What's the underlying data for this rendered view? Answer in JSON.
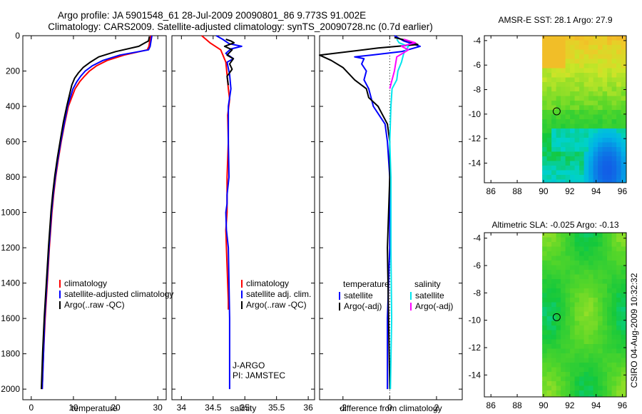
{
  "header": {
    "title_line1": "Argo profile: JA 5901548_61 28-Jul-2009 20090801_86 9.773S 91.002E",
    "title_line2": "Climatology: CARS2009. Satellite-adjusted climatology: synTS_20090728.nc (0.7d earlier)"
  },
  "footer": {
    "side_label": "CSIRO 04-Aug-2009 10:32:32"
  },
  "colors": {
    "red": "#ff0000",
    "blue": "#0000ff",
    "black": "#000000",
    "cyan": "#00e5ee",
    "magenta": "#ff00ff"
  },
  "chart_data": [
    {
      "type": "line",
      "id": "temperature",
      "xlabel": "temperature",
      "xlim": [
        -2,
        32
      ],
      "ylim": [
        0,
        2060
      ],
      "xticks": [
        0,
        10,
        20,
        30
      ],
      "yticks": [
        0,
        200,
        400,
        600,
        800,
        1000,
        1200,
        1400,
        1600,
        1800,
        2000
      ],
      "y_reversed": true,
      "legend": [
        "climatology",
        "satellite-adjusted climatology",
        "Argo(..raw -QC)"
      ],
      "series": [
        {
          "name": "climatology",
          "color": "red",
          "x": [
            28.3,
            28.1,
            27.9,
            27.5,
            22,
            18,
            15.5,
            13.8,
            12.6,
            11.5,
            10.4,
            8.8,
            7.9,
            7.1,
            6.4,
            5.8,
            5.3,
            4.9,
            4.3,
            3.8,
            3.3,
            2.9,
            2.6
          ],
          "y": [
            0,
            30,
            60,
            80,
            110,
            140,
            170,
            200,
            230,
            260,
            300,
            400,
            500,
            600,
            700,
            800,
            900,
            1000,
            1200,
            1400,
            1600,
            1800,
            2000
          ]
        },
        {
          "name": "satellite-adjusted climatology",
          "color": "blue",
          "x": [
            28.6,
            28.4,
            28.2,
            27.8,
            21,
            17,
            14.5,
            12.8,
            11.7,
            10.8,
            9.9,
            8.6,
            7.8,
            7.0,
            6.3,
            5.7,
            5.2,
            4.8,
            4.2,
            3.7,
            3.2,
            2.9,
            2.6
          ],
          "y": [
            0,
            30,
            60,
            80,
            110,
            140,
            170,
            200,
            230,
            260,
            300,
            400,
            500,
            600,
            700,
            800,
            900,
            1000,
            1200,
            1400,
            1600,
            1800,
            2000
          ]
        },
        {
          "name": "Argo(..raw -QC)",
          "color": "black",
          "x": [
            28.0,
            27.8,
            27.0,
            25.5,
            20,
            16,
            14,
            12.3,
            11.2,
            10.3,
            9.6,
            8.5,
            7.6,
            6.9,
            6.2,
            5.6,
            5.1,
            4.7,
            4.1,
            3.6,
            3.1,
            2.7,
            2.4
          ],
          "y": [
            5,
            30,
            40,
            60,
            90,
            120,
            150,
            180,
            210,
            240,
            280,
            390,
            490,
            590,
            690,
            790,
            890,
            990,
            1190,
            1390,
            1590,
            1790,
            2000
          ]
        }
      ]
    },
    {
      "type": "line",
      "id": "salinity",
      "xlabel": "salinity",
      "xlim": [
        33.85,
        36.1
      ],
      "ylim": [
        0,
        2060
      ],
      "xticks": [
        34,
        34.5,
        35,
        35.5,
        36
      ],
      "y_reversed": true,
      "legend": [
        "climatology",
        "satellite adj. clim.",
        "Argo(..raw -QC)"
      ],
      "annotations": [
        "J-ARGO",
        "PI: JAMSTEC"
      ],
      "series": [
        {
          "name": "climatology",
          "color": "red",
          "x": [
            34.32,
            34.45,
            34.62,
            34.7,
            34.72,
            34.74,
            34.76,
            34.73,
            34.74,
            34.72,
            34.72,
            34.7,
            34.71,
            34.72,
            34.73,
            34.74,
            34.74
          ],
          "y": [
            0,
            40,
            80,
            150,
            220,
            300,
            360,
            450,
            600,
            800,
            1000,
            1100,
            1200,
            1300,
            1400,
            1500,
            1550
          ]
        },
        {
          "name": "satellite adj. clim.",
          "color": "blue",
          "x": [
            34.55,
            34.65,
            34.75,
            34.95,
            34.78,
            34.7,
            34.82,
            34.72,
            34.76,
            34.78,
            34.74,
            34.74,
            34.75,
            34.72,
            34.72,
            34.7,
            34.71,
            34.74,
            34.75,
            34.76,
            34.76,
            34.76
          ],
          "y": [
            0,
            20,
            45,
            60,
            75,
            100,
            130,
            150,
            220,
            300,
            400,
            600,
            800,
            900,
            950,
            1000,
            1100,
            1200,
            1400,
            1600,
            1800,
            2000
          ]
        },
        {
          "name": "Argo(..raw -QC)",
          "color": "black",
          "x": [
            34.7,
            34.78,
            34.83,
            34.68,
            34.8,
            34.72,
            34.82,
            34.76,
            34.8,
            34.72,
            34.74
          ],
          "y": [
            20,
            30,
            40,
            60,
            80,
            110,
            130,
            160,
            190,
            230,
            280
          ]
        }
      ]
    },
    {
      "type": "line",
      "id": "difference",
      "xlabel": "difference from climatology",
      "xlim": [
        -3,
        3.1
      ],
      "ylim": [
        0,
        2060
      ],
      "xticks": [
        -2,
        0,
        2
      ],
      "y_reversed": true,
      "legend_temperature_heading": "temperature",
      "legend_salinity_heading": "salinity",
      "legend": [
        "satellite",
        "Argo(-adj)",
        "satellite",
        "Argo(-adj)"
      ],
      "series": [
        {
          "name": "temperature satellite",
          "color": "blue",
          "x": [
            0.2,
            0.6,
            1.3,
            0.5,
            -0.8,
            -1.5,
            -1.1,
            -1.2,
            -1.0,
            -1.1,
            -0.9,
            -0.7,
            -0.2,
            -0.1,
            0.0,
            0.0,
            0.0,
            -0.1,
            -0.1,
            -0.1
          ],
          "y": [
            0,
            30,
            60,
            90,
            110,
            120,
            130,
            160,
            200,
            250,
            300,
            400,
            500,
            600,
            800,
            1000,
            1200,
            1600,
            1900,
            2000
          ]
        },
        {
          "name": "temperature Argo(-adj)",
          "color": "black",
          "x": [
            0.2,
            0.8,
            1.2,
            -0.5,
            -3.0,
            -2.5,
            -2.0,
            -1.5,
            -1.0,
            -0.9,
            -0.5,
            -0.1,
            0.0,
            0.0,
            -0.1,
            0.0
          ],
          "y": [
            10,
            30,
            50,
            70,
            110,
            140,
            180,
            250,
            300,
            350,
            400,
            500,
            600,
            800,
            1200,
            2000
          ]
        },
        {
          "name": "salinity satellite",
          "color": "cyan",
          "x": [
            0.3,
            0.4,
            0.8,
            0.6,
            0.5,
            0.35,
            0.3,
            0.1,
            0.05,
            0.0,
            0.05,
            0.05,
            0.05,
            0.08,
            0.03
          ],
          "y": [
            20,
            40,
            60,
            100,
            150,
            200,
            250,
            300,
            400,
            600,
            800,
            1000,
            1200,
            1600,
            2000
          ]
        },
        {
          "name": "salinity Argo(-adj)",
          "color": "magenta",
          "x": [
            0.6,
            1.1,
            0.5,
            0.8,
            0.3,
            0.2,
            0.1,
            0.0
          ],
          "y": [
            20,
            40,
            60,
            80,
            120,
            200,
            250,
            300
          ]
        }
      ]
    },
    {
      "type": "heatmap",
      "id": "sst",
      "title": "AMSR-E SST: 28.1 Argo: 27.9",
      "xlim": [
        85.5,
        96.3
      ],
      "ylim": [
        -15.6,
        -3.6
      ],
      "xticks": [
        86,
        88,
        90,
        92,
        94,
        96
      ],
      "yticks": [
        -4,
        -6,
        -8,
        -10,
        -12,
        -14
      ],
      "data_xrange": [
        89.9,
        96.3
      ],
      "marker": {
        "lon": 91.002,
        "lat": -9.773
      }
    },
    {
      "type": "heatmap",
      "id": "sla",
      "title": "Altimetric SLA: -0.025 Argo: -0.13",
      "xlim": [
        85.5,
        96.3
      ],
      "ylim": [
        -15.6,
        -3.6
      ],
      "xticks": [
        86,
        88,
        90,
        92,
        94,
        96
      ],
      "yticks": [
        -4,
        -6,
        -8,
        -10,
        -12,
        -14
      ],
      "data_xrange": [
        89.9,
        96.3
      ],
      "marker": {
        "lon": 91.002,
        "lat": -9.773
      }
    }
  ]
}
